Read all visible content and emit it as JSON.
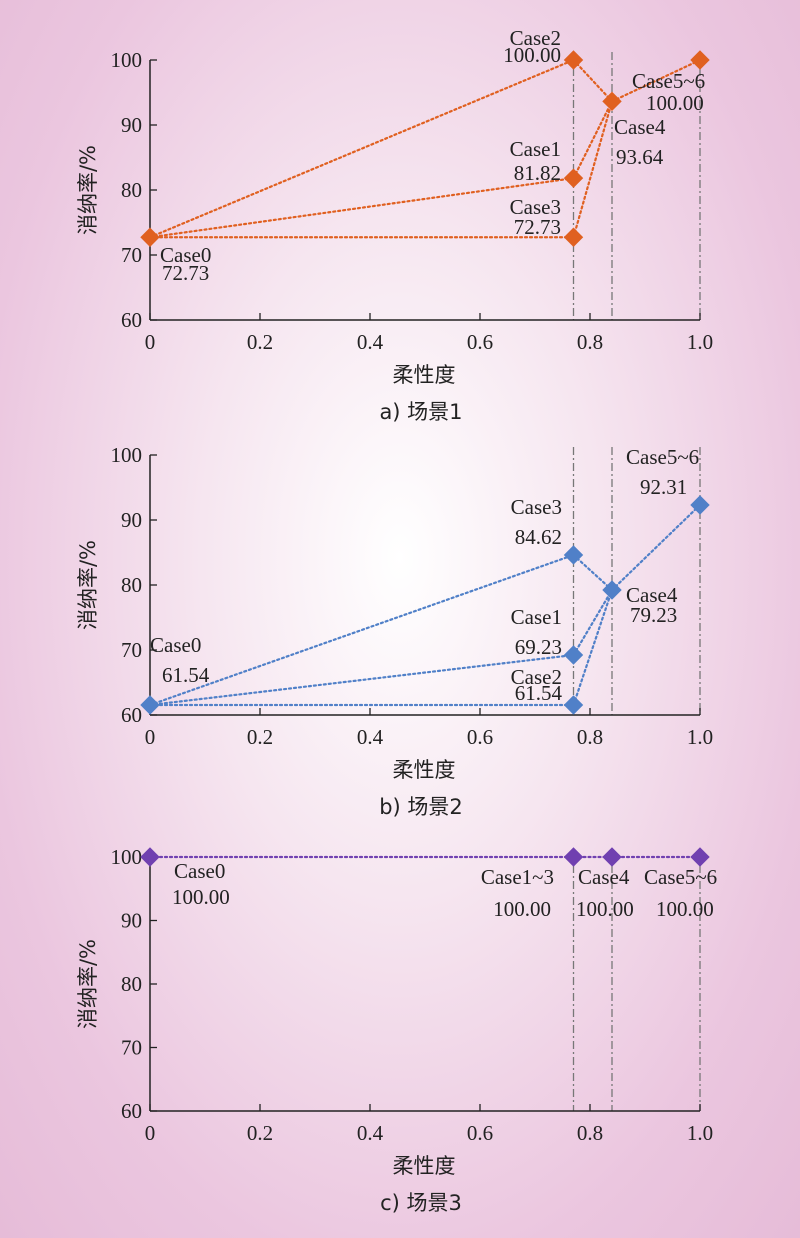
{
  "chart_data": [
    {
      "type": "line",
      "caption": "a) 场景1",
      "xlabel": "柔性度",
      "ylabel": "消纳率/%",
      "xlim": [
        0,
        1.0
      ],
      "ylim": [
        60,
        100
      ],
      "xticks": [
        "0",
        "0.2",
        "0.4",
        "0.6",
        "0.8",
        "1.0"
      ],
      "yticks": [
        "60",
        "70",
        "80",
        "90",
        "100"
      ],
      "color": "#e06020",
      "vlines": [
        0.77,
        0.84,
        1.0
      ],
      "points": [
        {
          "case": "Case0",
          "x": 0,
          "y": 72.73,
          "value": "72.73"
        },
        {
          "case": "Case1",
          "x": 0.77,
          "y": 81.82,
          "value": "81.82"
        },
        {
          "case": "Case2",
          "x": 0.77,
          "y": 100.0,
          "value": "100.00"
        },
        {
          "case": "Case3",
          "x": 0.77,
          "y": 72.73,
          "value": "72.73"
        },
        {
          "case": "Case4",
          "x": 0.84,
          "y": 93.64,
          "value": "93.64"
        },
        {
          "case": "Case5~6",
          "x": 1.0,
          "y": 100.0,
          "value": "100.00"
        }
      ]
    },
    {
      "type": "line",
      "caption": "b) 场景2",
      "xlabel": "柔性度",
      "ylabel": "消纳率/%",
      "xlim": [
        0,
        1.0
      ],
      "ylim": [
        60,
        100
      ],
      "xticks": [
        "0",
        "0.2",
        "0.4",
        "0.6",
        "0.8",
        "1.0"
      ],
      "yticks": [
        "60",
        "70",
        "80",
        "90",
        "100"
      ],
      "color": "#5080c8",
      "vlines": [
        0.77,
        0.84,
        1.0
      ],
      "points": [
        {
          "case": "Case0",
          "x": 0,
          "y": 61.54,
          "value": "61.54"
        },
        {
          "case": "Case1",
          "x": 0.77,
          "y": 69.23,
          "value": "69.23"
        },
        {
          "case": "Case2",
          "x": 0.77,
          "y": 61.54,
          "value": "61.54"
        },
        {
          "case": "Case3",
          "x": 0.77,
          "y": 84.62,
          "value": "84.62"
        },
        {
          "case": "Case4",
          "x": 0.84,
          "y": 79.23,
          "value": "79.23"
        },
        {
          "case": "Case5~6",
          "x": 1.0,
          "y": 92.31,
          "value": "92.31"
        }
      ]
    },
    {
      "type": "line",
      "caption": "c) 场景3",
      "xlabel": "柔性度",
      "ylabel": "消纳率/%",
      "xlim": [
        0,
        1.0
      ],
      "ylim": [
        60,
        100
      ],
      "xticks": [
        "0",
        "0.2",
        "0.4",
        "0.6",
        "0.8",
        "1.0"
      ],
      "yticks": [
        "60",
        "70",
        "80",
        "90",
        "100"
      ],
      "color": "#7040b0",
      "vlines": [
        0.77,
        0.84,
        1.0
      ],
      "points": [
        {
          "case": "Case0",
          "x": 0,
          "y": 100.0,
          "value": "100.00"
        },
        {
          "case": "Case1~3",
          "x": 0.77,
          "y": 100.0,
          "value": "100.00"
        },
        {
          "case": "Case4",
          "x": 0.84,
          "y": 100.0,
          "value": "100.00"
        },
        {
          "case": "Case5~6",
          "x": 1.0,
          "y": 100.0,
          "value": "100.00"
        }
      ]
    }
  ]
}
